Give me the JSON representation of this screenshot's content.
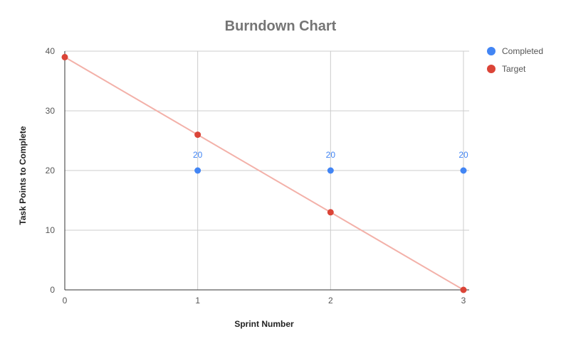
{
  "chart_data": {
    "type": "scatter",
    "title": "Burndown Chart",
    "xlabel": "Sprint Number",
    "ylabel": "Task Points to Complete",
    "xlim": [
      0,
      3
    ],
    "ylim": [
      0,
      40
    ],
    "x_ticks": [
      "0",
      "1",
      "2",
      "3"
    ],
    "y_ticks": [
      "0",
      "10",
      "20",
      "30",
      "40"
    ],
    "grid": true,
    "legend_position": "right",
    "series": [
      {
        "name": "Completed",
        "color": "#4285f4",
        "x": [
          1,
          2,
          3
        ],
        "y": [
          20,
          20,
          20
        ],
        "data_labels": [
          "20",
          "20",
          "20"
        ]
      },
      {
        "name": "Target",
        "color": "#db4437",
        "x": [
          0,
          1,
          2,
          3
        ],
        "y": [
          39,
          26,
          13,
          0
        ],
        "trendline": true,
        "trendline_color": "#f3b1a9"
      }
    ]
  }
}
